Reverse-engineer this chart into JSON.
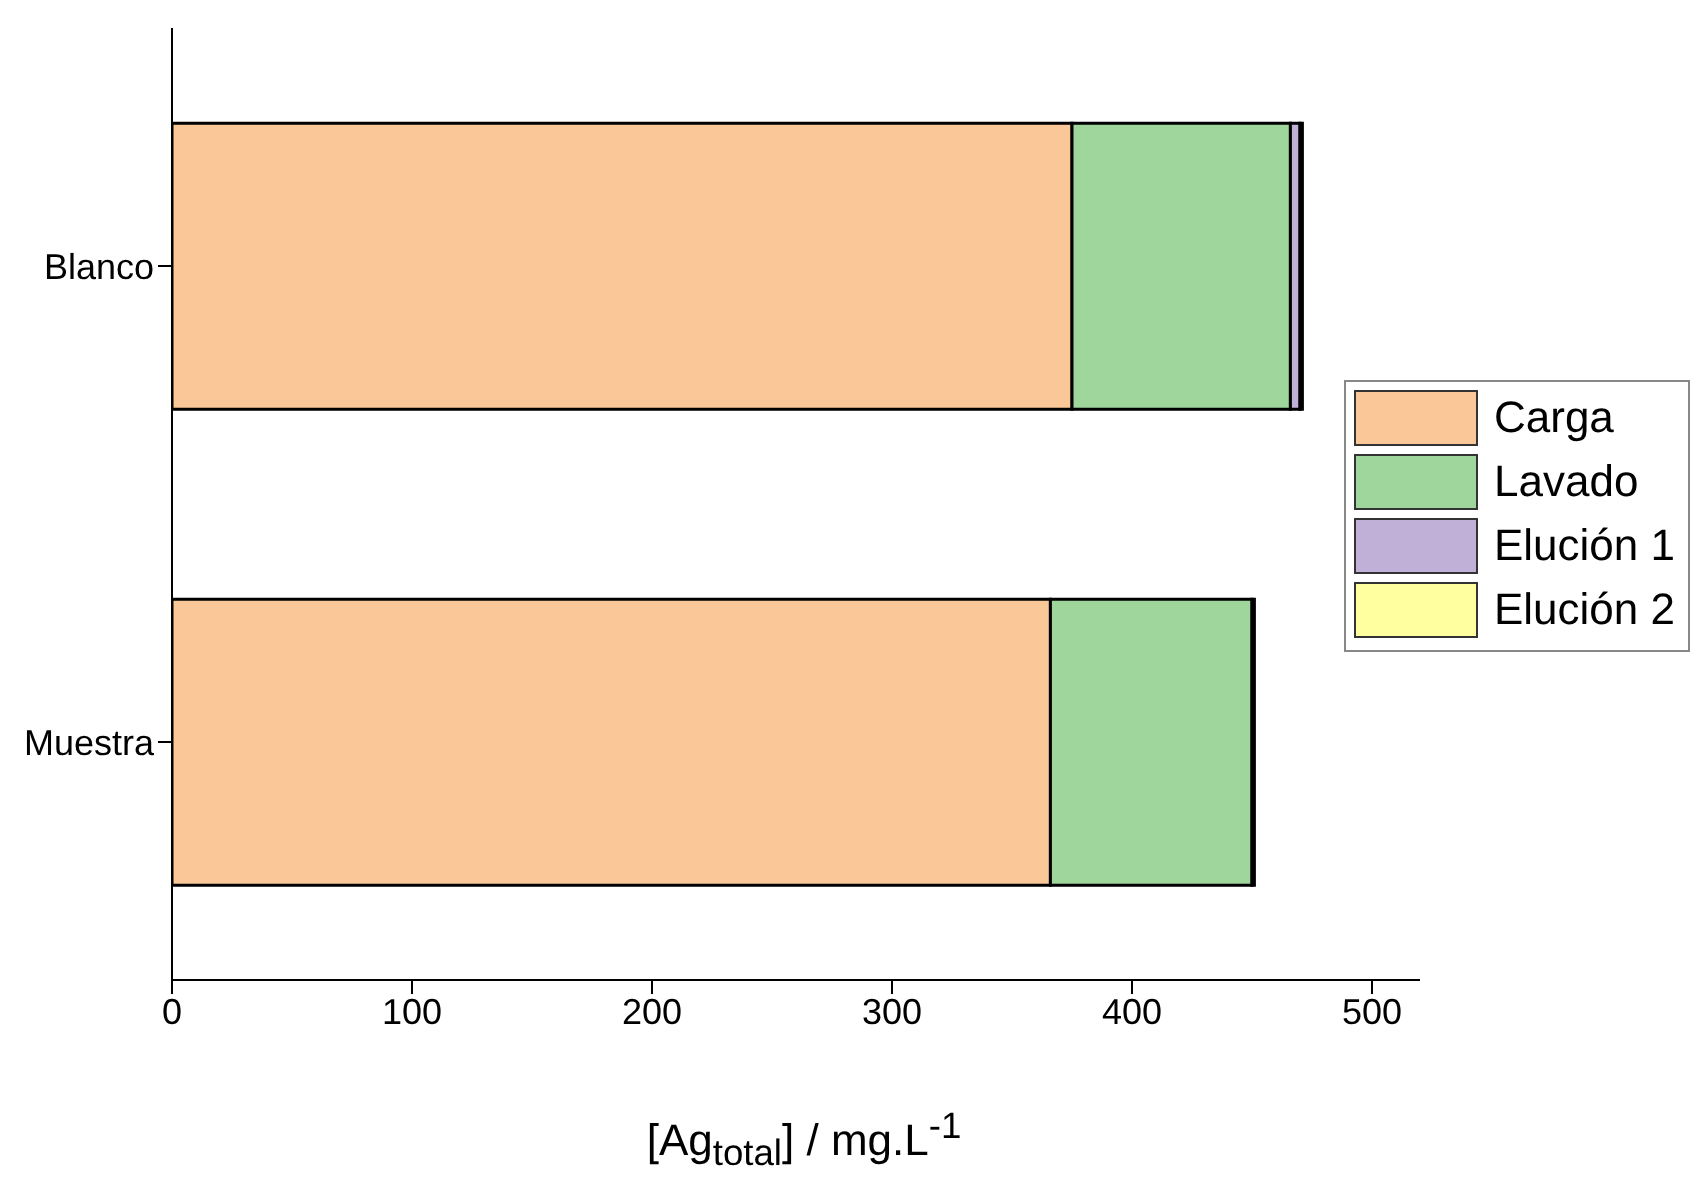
{
  "chart_data": {
    "type": "bar",
    "orientation": "horizontal",
    "stacked": true,
    "categories": [
      "Blanco",
      "Muestra"
    ],
    "series": [
      {
        "name": "Carga",
        "color": "#fac898",
        "values": [
          375,
          366
        ]
      },
      {
        "name": "Lavado",
        "color": "#9fd69b",
        "values": [
          91,
          84
        ]
      },
      {
        "name": "Elución 1",
        "color": "#c0b0d8",
        "values": [
          4,
          null
        ]
      },
      {
        "name": "Elución 2",
        "color": "#ffffa0",
        "values": [
          1,
          1
        ]
      }
    ],
    "xlabel": "[Ag$_{total}$] / mg.L$^{-1}$",
    "xlim": [
      0,
      520
    ],
    "xticks": [
      0,
      100,
      200,
      300,
      400,
      500
    ],
    "legend": "right",
    "grid": false
  }
}
